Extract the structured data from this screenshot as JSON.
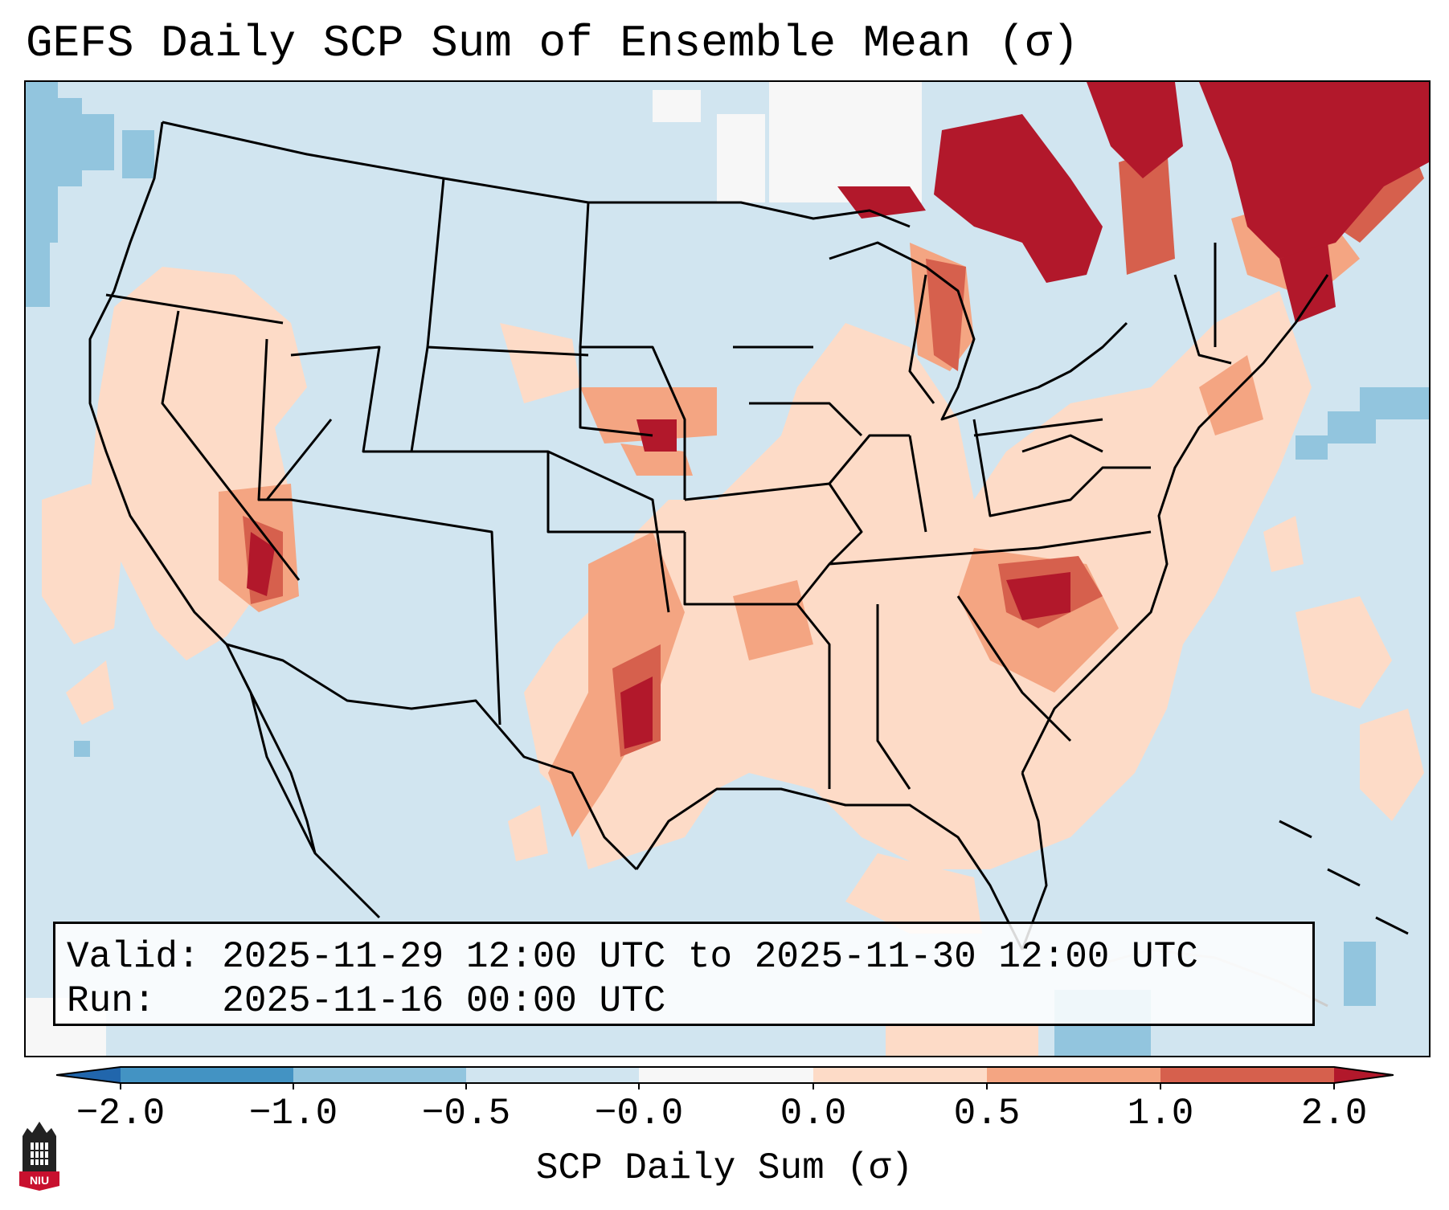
{
  "title": "GEFS Daily SCP Sum of Ensemble Mean (σ)",
  "info": {
    "valid_line": "Valid: 2025-11-29 12:00 UTC to 2025-11-30 12:00 UTC",
    "run_line": "Run:   2025-11-16 00:00 UTC"
  },
  "colorbar": {
    "label": "SCP Daily Sum (σ)",
    "ticks": [
      "−2.0",
      "−1.0",
      "−0.5",
      "−0.0",
      "0.0",
      "0.5",
      "1.0",
      "2.0"
    ],
    "colors": {
      "below": "#2166ac",
      "neg_2_to_1": "#4393c3",
      "neg_1_to_05": "#92c5de",
      "neg_05_to_0": "#d1e5f0",
      "zero": "#f7f7f7",
      "pos_0_to_05": "#fddbc7",
      "pos_05_to_1": "#f4a582",
      "pos_1_to_2": "#d6604d",
      "above": "#b2182b"
    }
  },
  "logo_text": "NIU",
  "map_colors": {
    "background": "#d1e5f0",
    "land_line": "#000000"
  }
}
